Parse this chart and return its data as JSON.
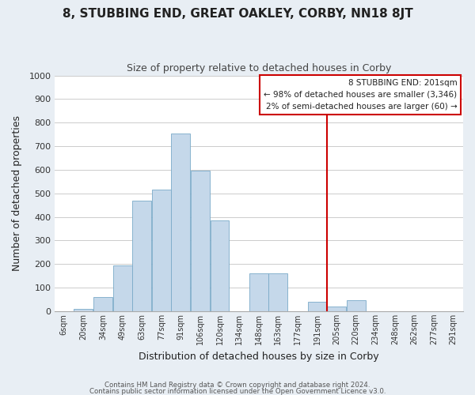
{
  "title": "8, STUBBING END, GREAT OAKLEY, CORBY, NN18 8JT",
  "subtitle": "Size of property relative to detached houses in Corby",
  "xlabel": "Distribution of detached houses by size in Corby",
  "ylabel": "Number of detached properties",
  "bar_color": "#c5d8ea",
  "bar_edge_color": "#7aaac8",
  "bin_labels": [
    "6sqm",
    "20sqm",
    "34sqm",
    "49sqm",
    "63sqm",
    "77sqm",
    "91sqm",
    "106sqm",
    "120sqm",
    "134sqm",
    "148sqm",
    "163sqm",
    "177sqm",
    "191sqm",
    "205sqm",
    "220sqm",
    "234sqm",
    "248sqm",
    "262sqm",
    "277sqm",
    "291sqm"
  ],
  "bar_heights": [
    0,
    10,
    60,
    195,
    470,
    515,
    755,
    595,
    385,
    0,
    160,
    160,
    0,
    40,
    20,
    45,
    0,
    0,
    0,
    0,
    0
  ],
  "ylim": [
    0,
    1000
  ],
  "yticks": [
    0,
    100,
    200,
    300,
    400,
    500,
    600,
    700,
    800,
    900,
    1000
  ],
  "vline_color": "#cc0000",
  "annotation_title": "8 STUBBING END: 201sqm",
  "annotation_line1": "← 98% of detached houses are smaller (3,346)",
  "annotation_line2": "2% of semi-detached houses are larger (60) →",
  "footer_line1": "Contains HM Land Registry data © Crown copyright and database right 2024.",
  "footer_line2": "Contains public sector information licensed under the Open Government Licence v3.0.",
  "background_color": "#e8eef4",
  "plot_background": "#ffffff",
  "grid_color": "#cccccc",
  "title_color": "#222222",
  "subtitle_color": "#444444",
  "footer_color": "#555555"
}
